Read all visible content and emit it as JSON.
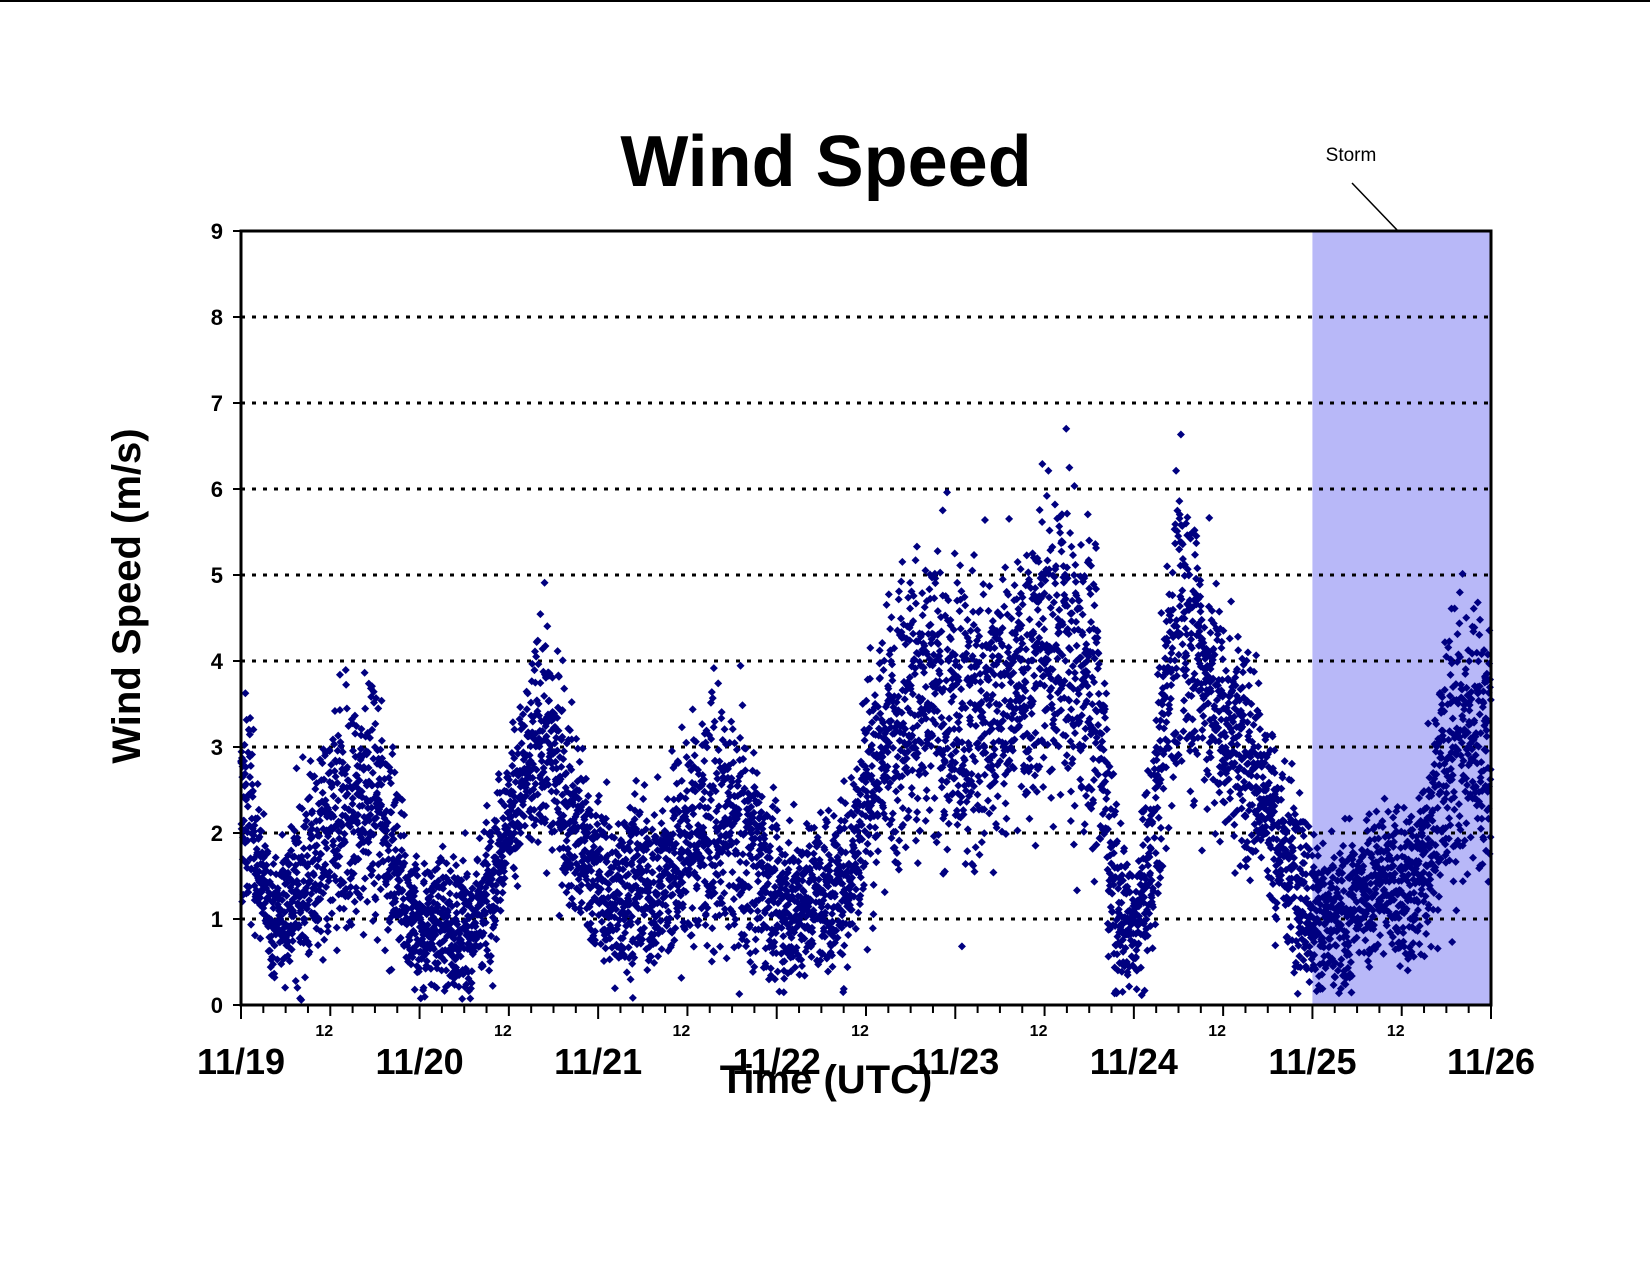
{
  "chart_data": {
    "type": "scatter",
    "title": "Wind Speed",
    "xlabel": "Time (UTC)",
    "ylabel": "Wind Speed (m/s)",
    "ylim": [
      0,
      9
    ],
    "yticks": [
      "0",
      "1",
      "2",
      "3",
      "4",
      "5",
      "6",
      "7",
      "8",
      "9"
    ],
    "x_major_ticks": [
      "11/19",
      "11/20",
      "11/21",
      "11/22",
      "11/23",
      "11/24",
      "11/25",
      "11/26"
    ],
    "x_minor_tick_label": "12",
    "grid": "horizontal dotted",
    "marker": "diamond",
    "colors": {
      "points": "#000080",
      "storm_shade": "#b8b8f8",
      "gridline": "#000000"
    },
    "annotation": {
      "text": "Storm",
      "start_day": "11/25",
      "end_day": "11/26"
    },
    "series": [
      {
        "x_unit": "days since 11/19 00 UTC",
        "envelope": [
          [
            0.0,
            2.2,
            0.8
          ],
          [
            0.05,
            2.3,
            0.8
          ],
          [
            0.1,
            1.6,
            0.5
          ],
          [
            0.18,
            1.0,
            0.4
          ],
          [
            0.3,
            1.3,
            0.7
          ],
          [
            0.4,
            1.6,
            0.8
          ],
          [
            0.5,
            1.9,
            0.9
          ],
          [
            0.6,
            2.1,
            1.0
          ],
          [
            0.7,
            2.4,
            0.9
          ],
          [
            0.8,
            2.2,
            0.9
          ],
          [
            0.9,
            1.4,
            0.6
          ],
          [
            1.0,
            0.8,
            0.5
          ],
          [
            1.1,
            1.0,
            0.5
          ],
          [
            1.2,
            0.9,
            0.5
          ],
          [
            1.3,
            0.9,
            0.5
          ],
          [
            1.4,
            1.5,
            0.6
          ],
          [
            1.5,
            2.2,
            0.5
          ],
          [
            1.6,
            2.7,
            0.7
          ],
          [
            1.7,
            3.2,
            0.9
          ],
          [
            1.8,
            2.6,
            0.8
          ],
          [
            1.9,
            1.9,
            0.7
          ],
          [
            2.0,
            1.5,
            0.6
          ],
          [
            2.1,
            1.2,
            0.6
          ],
          [
            2.2,
            1.5,
            0.7
          ],
          [
            2.3,
            1.3,
            0.6
          ],
          [
            2.4,
            1.6,
            0.8
          ],
          [
            2.5,
            1.9,
            0.8
          ],
          [
            2.6,
            2.1,
            0.9
          ],
          [
            2.7,
            2.0,
            0.9
          ],
          [
            2.8,
            2.0,
            0.9
          ],
          [
            2.9,
            1.7,
            0.8
          ],
          [
            3.0,
            1.1,
            0.6
          ],
          [
            3.1,
            1.2,
            0.6
          ],
          [
            3.2,
            1.3,
            0.6
          ],
          [
            3.3,
            1.3,
            0.6
          ],
          [
            3.4,
            1.5,
            0.7
          ],
          [
            3.5,
            2.5,
            0.9
          ],
          [
            3.6,
            3.0,
            1.0
          ],
          [
            3.7,
            3.5,
            1.1
          ],
          [
            3.8,
            3.6,
            1.2
          ],
          [
            3.9,
            3.5,
            1.2
          ],
          [
            4.0,
            3.3,
            1.1
          ],
          [
            4.1,
            3.3,
            1.1
          ],
          [
            4.2,
            3.5,
            1.0
          ],
          [
            4.3,
            3.6,
            1.0
          ],
          [
            4.4,
            3.8,
            1.1
          ],
          [
            4.5,
            4.2,
            1.2
          ],
          [
            4.6,
            4.3,
            1.3
          ],
          [
            4.7,
            4.0,
            1.3
          ],
          [
            4.8,
            3.5,
            1.2
          ],
          [
            4.9,
            1.1,
            0.6
          ],
          [
            5.0,
            0.8,
            0.5
          ],
          [
            5.1,
            1.7,
            0.8
          ],
          [
            5.2,
            4.0,
            1.1
          ],
          [
            5.3,
            4.5,
            1.2
          ],
          [
            5.4,
            3.8,
            1.0
          ],
          [
            5.5,
            3.3,
            0.9
          ],
          [
            5.6,
            3.0,
            0.9
          ],
          [
            5.7,
            2.7,
            0.8
          ],
          [
            5.8,
            1.9,
            0.7
          ],
          [
            5.9,
            1.6,
            0.7
          ],
          [
            6.0,
            1.1,
            0.6
          ],
          [
            6.1,
            0.9,
            0.6
          ],
          [
            6.2,
            1.0,
            0.6
          ],
          [
            6.3,
            1.4,
            0.6
          ],
          [
            6.4,
            1.5,
            0.6
          ],
          [
            6.5,
            1.3,
            0.6
          ],
          [
            6.6,
            1.5,
            0.7
          ],
          [
            6.7,
            2.5,
            1.0
          ],
          [
            6.8,
            3.0,
            1.1
          ],
          [
            6.9,
            3.2,
            1.1
          ],
          [
            7.0,
            3.0,
            1.1
          ]
        ]
      }
    ]
  }
}
